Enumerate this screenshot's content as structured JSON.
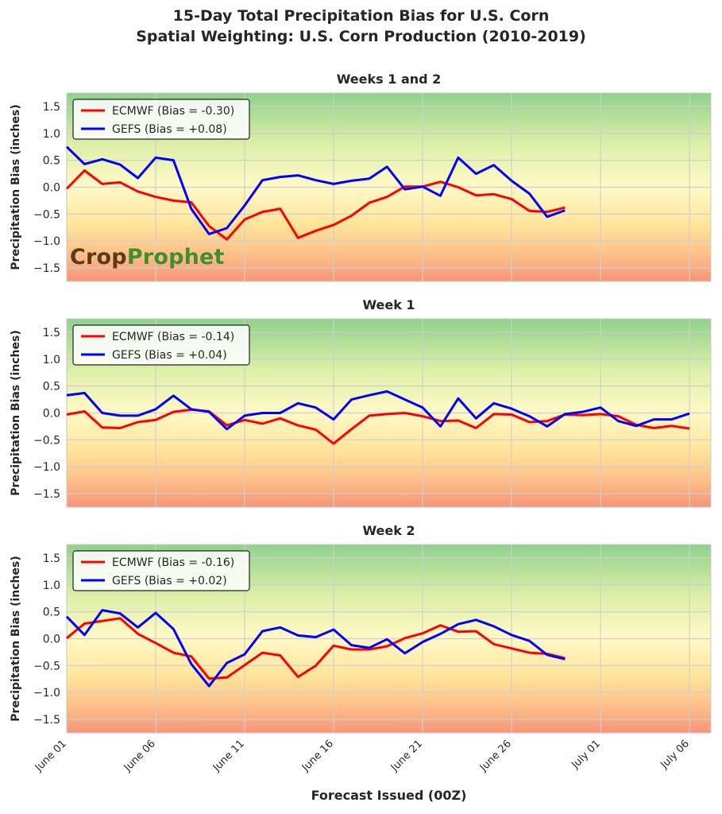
{
  "title_line1": "15-Day Total Precipitation Bias for U.S. Corn",
  "title_line2": "Spatial Weighting: U.S. Corn Production (2010-2019)",
  "logo": {
    "part1": "Crop",
    "part2": "Prophet"
  },
  "colors": {
    "ecmwf": "#ff0000",
    "gefs": "#0000ff",
    "gradient_top": "#8fd18c",
    "gradient_mid": "#fff9c7",
    "gradient_bottom": "#f6957a"
  },
  "chart_data": [
    {
      "type": "line",
      "title": "Weeks 1 and 2",
      "ylabel": "Precipitation Bias (inches)",
      "xlabel": "Forecast Issued (00Z)",
      "ylim": [
        -1.75,
        1.75
      ],
      "yticks": [
        "1.5",
        "1.0",
        "0.5",
        "0.0",
        "−0.5",
        "−1.0",
        "−1.5"
      ],
      "x_start": "June 01",
      "xlim_days": [
        0,
        36.2
      ],
      "grid": true,
      "legend": "top-left",
      "series": [
        {
          "name": "ECMWF (Bias = -0.30)",
          "values": [
            -0.03,
            0.31,
            0.06,
            0.09,
            -0.08,
            -0.18,
            -0.25,
            -0.28,
            -0.72,
            -0.97,
            -0.6,
            -0.46,
            -0.4,
            -0.94,
            -0.81,
            -0.7,
            -0.53,
            -0.29,
            -0.18,
            0.01,
            0.01,
            0.1,
            0.0,
            -0.15,
            -0.13,
            -0.22,
            -0.44,
            -0.46,
            -0.38
          ]
        },
        {
          "name": "GEFS (Bias = +0.08)",
          "values": [
            0.75,
            0.43,
            0.52,
            0.42,
            0.17,
            0.55,
            0.5,
            -0.4,
            -0.87,
            -0.76,
            -0.34,
            0.13,
            0.19,
            0.22,
            0.13,
            0.06,
            0.12,
            0.16,
            0.38,
            -0.04,
            0.01,
            -0.16,
            0.55,
            0.25,
            0.41,
            0.12,
            -0.12,
            -0.55,
            -0.43
          ]
        }
      ]
    },
    {
      "type": "line",
      "title": "Week 1",
      "ylabel": "Precipitation Bias (inches)",
      "ylim": [
        -1.75,
        1.75
      ],
      "yticks": [
        "1.5",
        "1.0",
        "0.5",
        "0.0",
        "−0.5",
        "−1.0",
        "−1.5"
      ],
      "x_start": "June 01",
      "xlim_days": [
        0,
        36.2
      ],
      "grid": true,
      "legend": "top-left",
      "series": [
        {
          "name": "ECMWF (Bias = -0.14)",
          "values": [
            -0.03,
            0.03,
            -0.27,
            -0.28,
            -0.17,
            -0.13,
            0.02,
            0.06,
            0.03,
            -0.23,
            -0.13,
            -0.2,
            -0.1,
            -0.23,
            -0.31,
            -0.57,
            -0.3,
            -0.05,
            -0.02,
            0.0,
            -0.06,
            -0.15,
            -0.14,
            -0.28,
            -0.02,
            -0.03,
            -0.17,
            -0.15,
            -0.03,
            -0.04,
            -0.02,
            -0.06,
            -0.22,
            -0.28,
            -0.24,
            -0.29
          ]
        },
        {
          "name": "GEFS (Bias = +0.04)",
          "values": [
            0.33,
            0.37,
            0.0,
            -0.05,
            -0.05,
            0.07,
            0.32,
            0.07,
            0.02,
            -0.3,
            -0.05,
            0.0,
            0.0,
            0.18,
            0.1,
            -0.12,
            0.25,
            0.33,
            0.4,
            0.25,
            0.1,
            -0.25,
            0.27,
            -0.1,
            0.18,
            0.08,
            -0.06,
            -0.25,
            -0.02,
            0.02,
            0.1,
            -0.15,
            -0.24,
            -0.12,
            -0.12,
            -0.01
          ]
        }
      ]
    },
    {
      "type": "line",
      "title": "Week 2",
      "ylabel": "Precipitation Bias (inches)",
      "ylim": [
        -1.75,
        1.75
      ],
      "yticks": [
        "1.5",
        "1.0",
        "0.5",
        "0.0",
        "−0.5",
        "−1.0",
        "−1.5"
      ],
      "x_start": "June 01",
      "xlim_days": [
        0,
        36.2
      ],
      "xticks": [
        "June 01",
        "June 06",
        "June 11",
        "June 16",
        "June 21",
        "June 26",
        "July 01",
        "July 06"
      ],
      "grid": true,
      "legend": "top-left",
      "series": [
        {
          "name": "ECMWF (Bias = -0.16)",
          "values": [
            0.01,
            0.28,
            0.33,
            0.38,
            0.09,
            -0.08,
            -0.26,
            -0.33,
            -0.74,
            -0.72,
            -0.49,
            -0.26,
            -0.31,
            -0.71,
            -0.5,
            -0.13,
            -0.2,
            -0.2,
            -0.14,
            0.01,
            0.1,
            0.25,
            0.13,
            0.14,
            -0.1,
            -0.18,
            -0.26,
            -0.28,
            -0.36
          ]
        },
        {
          "name": "GEFS (Bias = +0.02)",
          "values": [
            0.41,
            0.07,
            0.53,
            0.47,
            0.21,
            0.48,
            0.18,
            -0.47,
            -0.88,
            -0.45,
            -0.29,
            0.14,
            0.21,
            0.06,
            0.03,
            0.17,
            -0.12,
            -0.17,
            -0.01,
            -0.27,
            -0.06,
            0.09,
            0.27,
            0.35,
            0.23,
            0.07,
            -0.04,
            -0.3,
            -0.38
          ]
        }
      ]
    }
  ]
}
